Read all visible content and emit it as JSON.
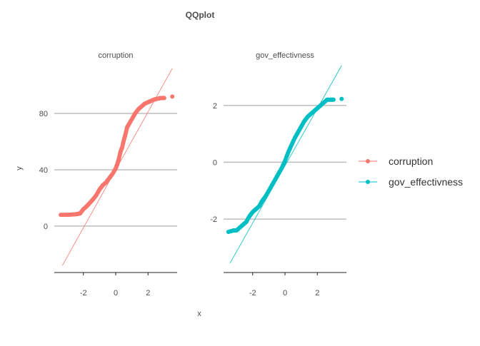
{
  "chart_data": {
    "type": "scatter",
    "title": "QQplot",
    "xlabel": "x",
    "ylabel": "y",
    "legend": {
      "position": "right",
      "entries": [
        {
          "label": "corruption",
          "color": "#F8766D"
        },
        {
          "label": "gov_effectivness",
          "color": "#00BFC4"
        }
      ]
    },
    "grid": true,
    "panels": [
      {
        "strip": "corruption",
        "color": "#F8766D",
        "xlim": [
          -3.8,
          3.8
        ],
        "ylim": [
          -33,
          115
        ],
        "x_ticks": [
          -2,
          0,
          2
        ],
        "y_ticks": [
          0,
          40,
          80
        ],
        "ref_line": [
          [
            -3.3,
            -28
          ],
          [
            3.5,
            112
          ]
        ],
        "points": [
          [
            -3.4,
            8
          ],
          [
            -3.0,
            8
          ],
          [
            -2.7,
            8.2
          ],
          [
            -2.4,
            8.5
          ],
          [
            -2.2,
            9
          ],
          [
            -2.0,
            12
          ],
          [
            -1.8,
            14
          ],
          [
            -1.6,
            16.5
          ],
          [
            -1.4,
            19
          ],
          [
            -1.2,
            22
          ],
          [
            -1.0,
            26
          ],
          [
            -0.8,
            29
          ],
          [
            -0.6,
            31
          ],
          [
            -0.4,
            34
          ],
          [
            -0.2,
            37
          ],
          [
            0.0,
            41
          ],
          [
            0.1,
            44
          ],
          [
            0.2,
            48
          ],
          [
            0.3,
            53
          ],
          [
            0.4,
            56
          ],
          [
            0.5,
            61
          ],
          [
            0.6,
            65
          ],
          [
            0.7,
            70
          ],
          [
            0.8,
            72
          ],
          [
            1.0,
            76
          ],
          [
            1.2,
            80
          ],
          [
            1.4,
            83
          ],
          [
            1.6,
            85
          ],
          [
            1.8,
            87
          ],
          [
            2.0,
            88
          ],
          [
            2.2,
            89
          ],
          [
            2.4,
            90
          ],
          [
            2.6,
            90.5
          ],
          [
            2.8,
            91
          ],
          [
            3.0,
            91
          ],
          [
            3.5,
            92
          ]
        ]
      },
      {
        "strip": "gov_effectivness",
        "color": "#00BFC4",
        "xlim": [
          -3.8,
          3.8
        ],
        "ylim": [
          -3.88,
          3.45
        ],
        "x_ticks": [
          -2,
          0,
          2
        ],
        "y_ticks": [
          -2,
          0,
          2
        ],
        "ref_line": [
          [
            -3.4,
            -3.55
          ],
          [
            3.5,
            3.4
          ]
        ],
        "points": [
          [
            -3.5,
            -2.45
          ],
          [
            -3.2,
            -2.4
          ],
          [
            -3.0,
            -2.4
          ],
          [
            -2.8,
            -2.3
          ],
          [
            -2.6,
            -2.2
          ],
          [
            -2.4,
            -2.1
          ],
          [
            -2.2,
            -1.9
          ],
          [
            -2.0,
            -1.75
          ],
          [
            -1.8,
            -1.65
          ],
          [
            -1.6,
            -1.55
          ],
          [
            -1.4,
            -1.35
          ],
          [
            -1.2,
            -1.2
          ],
          [
            -1.0,
            -1.0
          ],
          [
            -0.8,
            -0.8
          ],
          [
            -0.6,
            -0.6
          ],
          [
            -0.4,
            -0.4
          ],
          [
            -0.2,
            -0.2
          ],
          [
            0.0,
            0.05
          ],
          [
            0.2,
            0.35
          ],
          [
            0.4,
            0.6
          ],
          [
            0.6,
            0.85
          ],
          [
            0.8,
            1.05
          ],
          [
            1.0,
            1.25
          ],
          [
            1.2,
            1.45
          ],
          [
            1.4,
            1.6
          ],
          [
            1.6,
            1.7
          ],
          [
            1.8,
            1.8
          ],
          [
            2.0,
            1.9
          ],
          [
            2.2,
            2.0
          ],
          [
            2.4,
            2.1
          ],
          [
            2.6,
            2.2
          ],
          [
            2.8,
            2.2
          ],
          [
            3.0,
            2.2
          ],
          [
            3.5,
            2.23
          ]
        ]
      }
    ]
  }
}
